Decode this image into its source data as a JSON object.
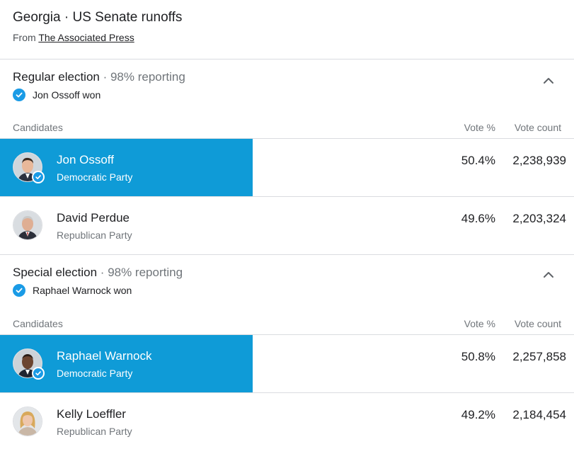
{
  "header": {
    "title": "Georgia · US Senate runoffs",
    "source_prefix": "From ",
    "source_link": "The Associated Press"
  },
  "columns": {
    "candidates": "Candidates",
    "vote_pct": "Vote %",
    "vote_count": "Vote count"
  },
  "elections": [
    {
      "name": "Regular election",
      "separator": " · ",
      "reporting": "98% reporting",
      "winner_text": "Jon Ossoff won",
      "candidates": [
        {
          "name": "Jon Ossoff",
          "party": "Democratic Party",
          "pct": "50.4%",
          "votes": "2,238,939",
          "winner": true
        },
        {
          "name": "David Perdue",
          "party": "Republican Party",
          "pct": "49.6%",
          "votes": "2,203,324",
          "winner": false
        }
      ]
    },
    {
      "name": "Special election",
      "separator": " · ",
      "reporting": "98% reporting",
      "winner_text": "Raphael Warnock won",
      "candidates": [
        {
          "name": "Raphael Warnock",
          "party": "Democratic Party",
          "pct": "50.8%",
          "votes": "2,257,858",
          "winner": true
        },
        {
          "name": "Kelly Loeffler",
          "party": "Republican Party",
          "pct": "49.2%",
          "votes": "2,184,454",
          "winner": false
        }
      ]
    }
  ],
  "colors": {
    "winner_highlight": "#0f9bd7",
    "check_badge": "#1a9be6",
    "divider": "#dadce0"
  }
}
